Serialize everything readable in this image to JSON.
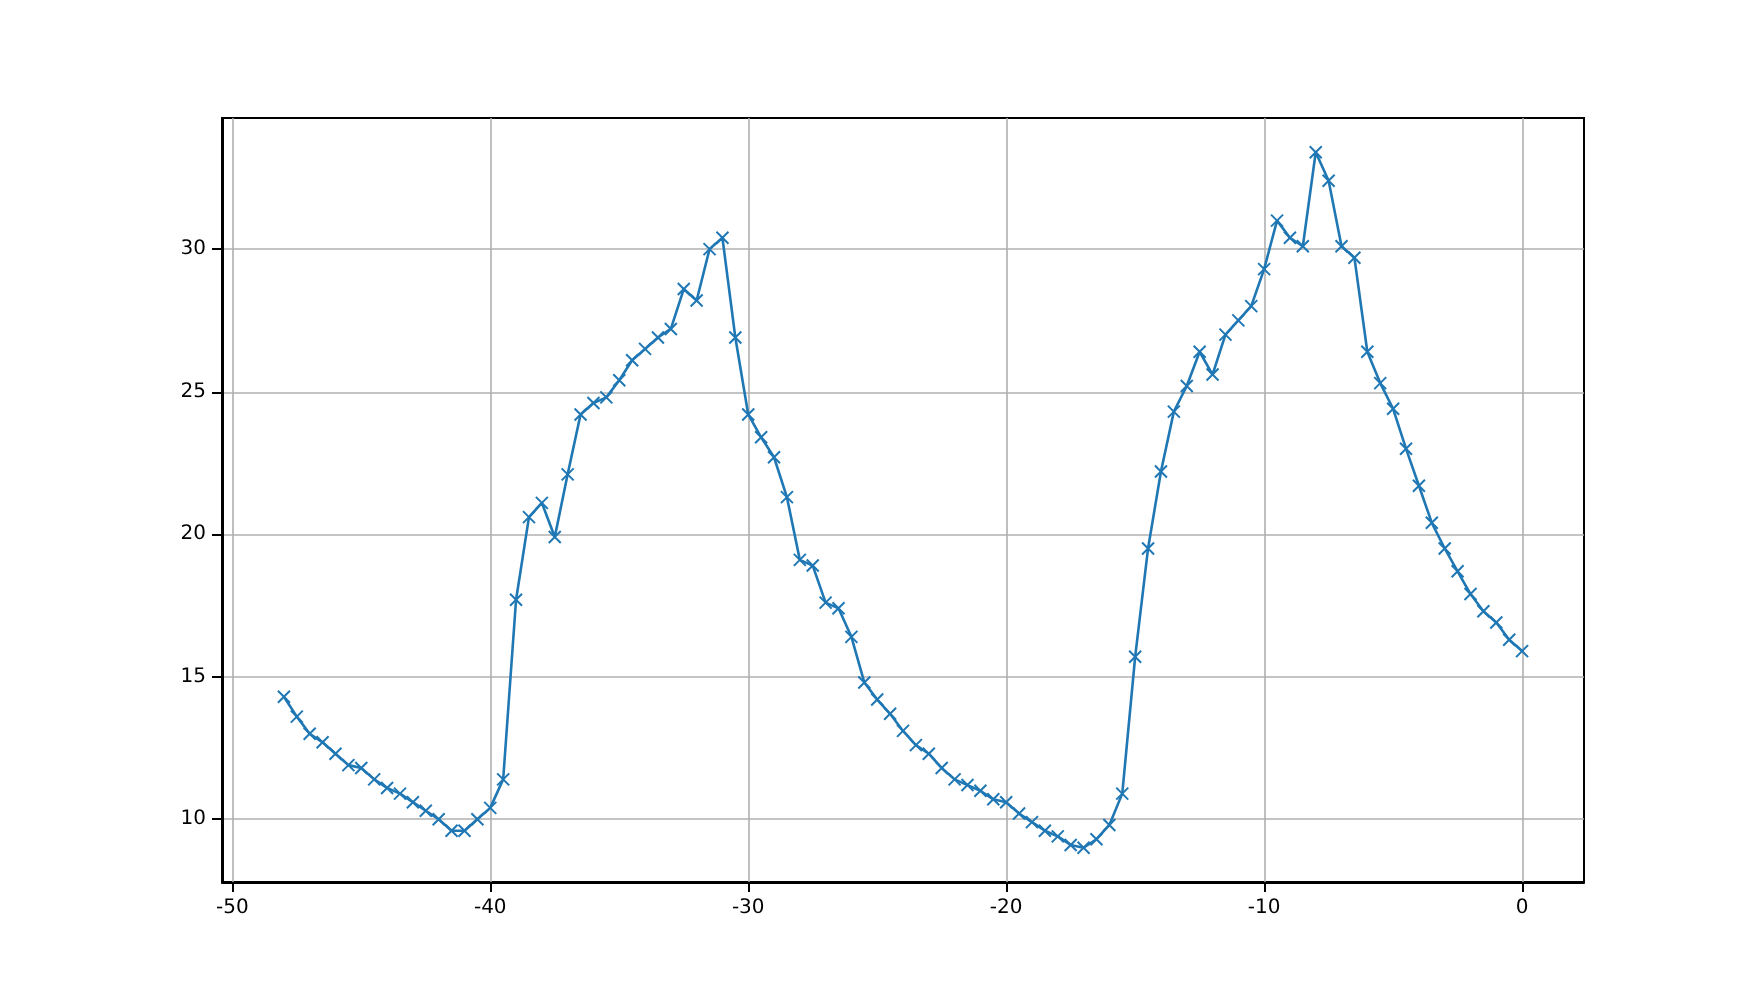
{
  "chart_data": {
    "type": "line",
    "marker": "cross",
    "line_style": "solid",
    "grid": true,
    "x": [
      -48,
      -47.5,
      -47,
      -46.5,
      -46,
      -45.5,
      -45,
      -44.5,
      -44,
      -43.5,
      -43,
      -42.5,
      -42,
      -41.5,
      -41,
      -40.5,
      -40,
      -39.5,
      -39,
      -38.5,
      -38,
      -37.5,
      -37,
      -36.5,
      -36,
      -35.5,
      -35,
      -34.5,
      -34,
      -33.5,
      -33,
      -32.5,
      -32,
      -31.5,
      -31,
      -30.5,
      -30,
      -29.5,
      -29,
      -28.5,
      -28,
      -27.5,
      -27,
      -26.5,
      -26,
      -25.5,
      -25,
      -24.5,
      -24,
      -23.5,
      -23,
      -22.5,
      -22,
      -21.5,
      -21,
      -20.5,
      -20,
      -19.5,
      -19,
      -18.5,
      -18,
      -17.5,
      -17,
      -16.5,
      -16,
      -15.5,
      -15,
      -14.5,
      -14,
      -13.5,
      -13,
      -12.5,
      -12,
      -11.5,
      -11,
      -10.5,
      -10,
      -9.5,
      -9,
      -8.5,
      -8,
      -7.5,
      -7,
      -6.5,
      -6,
      -5.5,
      -5,
      -4.5,
      -4,
      -3.5,
      -3,
      -2.5,
      -2,
      -1.5,
      -1,
      -0.5,
      0
    ],
    "series": [
      {
        "color": "#1f77b4",
        "values": [
          14.3,
          13.6,
          13.0,
          12.7,
          12.3,
          11.9,
          11.8,
          11.4,
          11.1,
          10.9,
          10.6,
          10.3,
          10.0,
          9.6,
          9.6,
          10.0,
          10.4,
          11.4,
          17.7,
          20.6,
          21.1,
          19.9,
          22.1,
          24.2,
          24.6,
          24.8,
          25.4,
          26.1,
          26.5,
          26.9,
          27.2,
          28.6,
          28.2,
          30.0,
          30.4,
          26.9,
          24.2,
          23.4,
          22.7,
          21.3,
          19.1,
          18.9,
          17.6,
          17.4,
          16.4,
          14.8,
          14.2,
          13.7,
          13.1,
          12.6,
          12.3,
          11.8,
          11.4,
          11.2,
          11.0,
          10.7,
          10.6,
          10.2,
          9.9,
          9.6,
          9.4,
          9.1,
          9.0,
          9.3,
          9.8,
          10.9,
          15.7,
          19.5,
          22.2,
          24.3,
          25.2,
          26.4,
          25.6,
          27.0,
          27.5,
          28.0,
          29.3,
          31.0,
          30.4,
          30.1,
          33.4,
          32.4,
          30.1,
          29.7,
          26.4,
          25.3,
          24.4,
          23.0,
          21.7,
          20.4,
          19.5,
          18.7,
          17.9,
          17.3,
          16.9,
          16.3,
          15.9
        ]
      }
    ],
    "xlim": [
      -50.4,
      2.4
    ],
    "ylim": [
      7.8,
      34.6
    ],
    "xticks": [
      -50,
      -40,
      -30,
      -20,
      -10,
      0
    ],
    "yticks": [
      10,
      15,
      20,
      25,
      30
    ]
  }
}
